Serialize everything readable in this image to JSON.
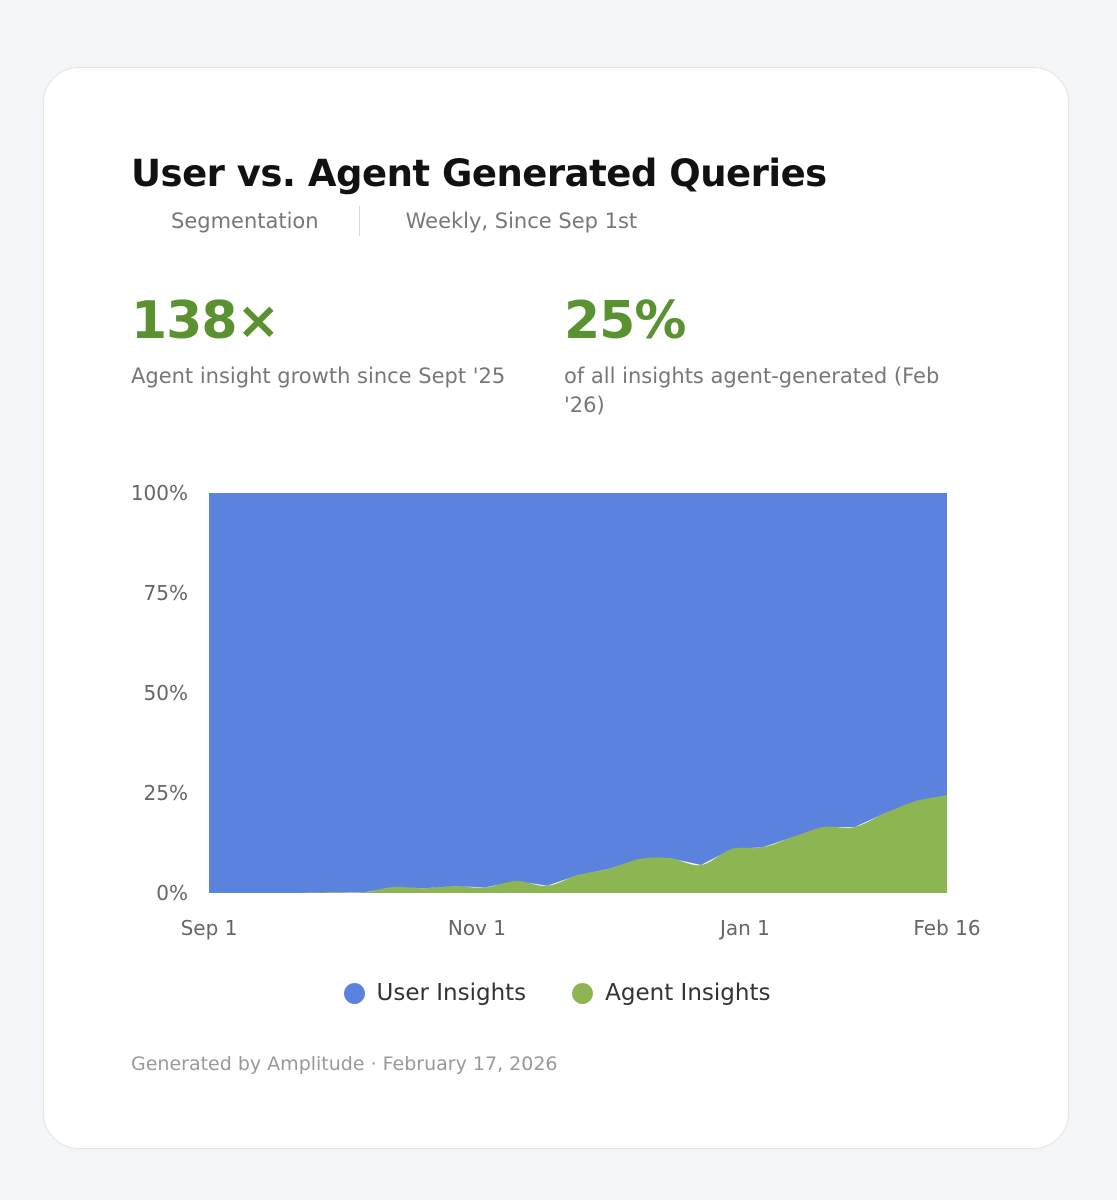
{
  "card": {
    "title": "User vs. Agent Generated Queries",
    "meta_type": "Segmentation",
    "meta_period": "Weekly, Since Sep 1st",
    "stats": [
      {
        "value": "138×",
        "label": "Agent insight growth since Sept '25"
      },
      {
        "value": "25%",
        "label": "of all insights agent-generated (Feb '26)"
      }
    ],
    "footer": "Generated by Amplitude · February 17, 2026"
  },
  "colors": {
    "user": "#5b83de",
    "agent": "#8db653",
    "stat": "#5a9131"
  },
  "chart_data": {
    "type": "area",
    "stacking": "percent",
    "x": [
      "Sep 1",
      "Sep 8",
      "Sep 15",
      "Sep 22",
      "Sep 29",
      "Oct 6",
      "Oct 13",
      "Oct 20",
      "Oct 27",
      "Nov 3",
      "Nov 10",
      "Nov 17",
      "Nov 24",
      "Dec 1",
      "Dec 8",
      "Dec 15",
      "Dec 22",
      "Dec 29",
      "Jan 5",
      "Jan 12",
      "Jan 19",
      "Jan 26",
      "Feb 2",
      "Feb 9",
      "Feb 16"
    ],
    "x_ticks": [
      "Sep 1",
      "Nov 1",
      "Jan 1",
      "Feb 16"
    ],
    "y_ticks": [
      "100%",
      "75%",
      "50%",
      "25%",
      "0%"
    ],
    "ylim": [
      0,
      100
    ],
    "series": [
      {
        "name": "User Insights",
        "values": [
          100,
          100,
          100,
          100,
          99.8,
          99.9,
          98.5,
          98.8,
          98.3,
          98.6,
          97,
          98.2,
          95.5,
          94,
          91.5,
          91.3,
          93,
          89,
          88.6,
          86,
          83.5,
          83.5,
          80,
          77,
          75.6
        ]
      },
      {
        "name": "Agent Insights",
        "values": [
          0,
          0,
          0,
          0,
          0.2,
          0.1,
          1.5,
          1.2,
          1.7,
          1.4,
          3,
          1.8,
          4.5,
          6,
          8.5,
          8.7,
          7,
          11,
          11.4,
          14,
          16.5,
          16.5,
          20,
          23,
          24.4
        ]
      }
    ],
    "legend": [
      "User Insights",
      "Agent Insights"
    ]
  }
}
